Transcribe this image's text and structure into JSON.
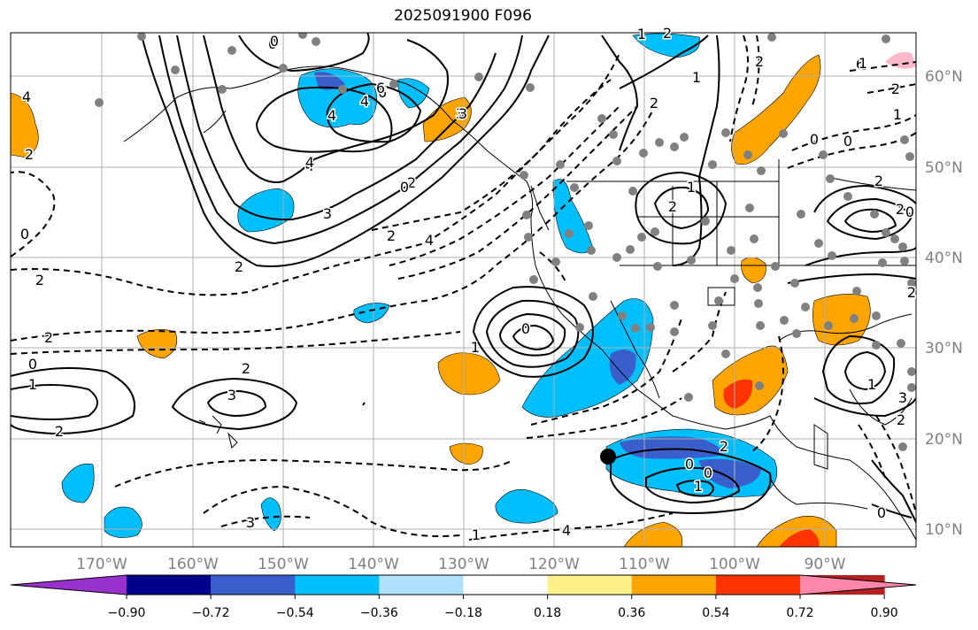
{
  "title": "2025091900 F096",
  "longitude_labels": [
    "170°W",
    "160°W",
    "150°W",
    "140°W",
    "130°W",
    "120°W",
    "110°W",
    "100°W",
    "90°W"
  ],
  "latitude_labels": [
    "60°N",
    "50°N",
    "40°N",
    "30°N",
    "20°N",
    "10°N"
  ],
  "colorbar": {
    "tick_labels": [
      "−0.90",
      "−0.72",
      "−0.54",
      "−0.36",
      "−0.18",
      "0.18",
      "0.36",
      "0.54",
      "0.72",
      "0.90"
    ],
    "colors": [
      "#9932cc",
      "#00008b",
      "#3a5fcd",
      "#00bfff",
      "#b0e2ff",
      "#ffffff",
      "#fff08a",
      "#ffa500",
      "#ff3300",
      "#b22222",
      "#ff88aa"
    ]
  },
  "contour_labels": [
    "4",
    "6",
    "4",
    "0",
    "4",
    "3",
    "2",
    "6",
    "2",
    "2",
    "4",
    "3",
    "2",
    "0",
    "4",
    "2",
    "2",
    "1",
    "2",
    "2",
    "6",
    "4",
    "3",
    "0",
    "2",
    "0",
    "2",
    "2",
    "0",
    "1",
    "2",
    "3",
    "2",
    "3",
    "4",
    "1",
    "2",
    "0",
    "0",
    "1",
    "0",
    "1",
    "2",
    "1",
    "0",
    "2",
    "1",
    "3",
    "2",
    "0",
    "0",
    "2",
    "1",
    "1",
    "0",
    "1"
  ],
  "colors": {
    "land_outline": "#000000",
    "grid": "#b0b0b0",
    "station_dot": "#808080",
    "marker": "#000000"
  }
}
